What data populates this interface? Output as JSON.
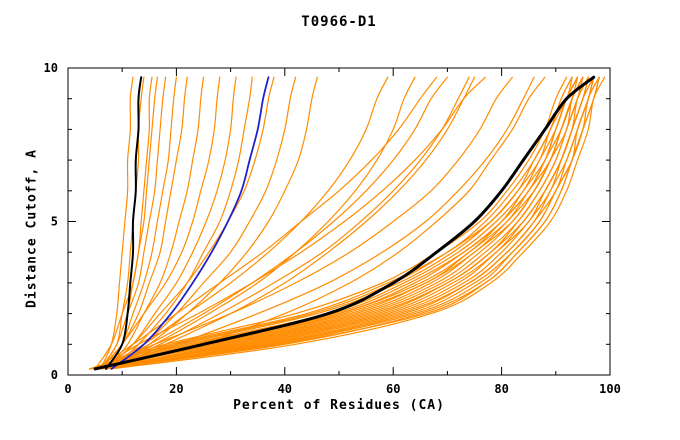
{
  "chart_data": {
    "type": "line",
    "title": "T0966-D1",
    "xlabel": "Percent of Residues (CA)",
    "ylabel": "Distance Cutoff, A",
    "xlim": [
      0,
      100
    ],
    "ylim": [
      0,
      10
    ],
    "x_ticks": [
      0,
      20,
      40,
      60,
      80,
      100
    ],
    "x_minor_step": 10,
    "y_ticks": [
      0,
      5,
      10
    ],
    "y_minor_step": 1,
    "grid": false,
    "legend": "none",
    "series_format": "each series lists percent-of-residues (x) at each distance-cutoff level in y_levels",
    "y_levels": [
      0.2,
      1,
      2,
      3,
      4,
      5,
      6,
      7,
      8,
      9,
      9.7
    ],
    "colors": {
      "ensemble": "#ff8c00",
      "highlight": "#000000",
      "reference": "#2121c8"
    },
    "ensemble_series": [
      [
        6,
        8,
        9,
        9.5,
        10,
        10.5,
        11,
        11,
        11.5,
        11.5,
        12
      ],
      [
        6,
        9,
        10,
        11,
        11.5,
        12,
        12.5,
        13,
        13,
        13.5,
        14
      ],
      [
        7,
        10,
        11,
        12,
        13,
        13.5,
        14,
        14.5,
        15,
        15,
        15.5
      ],
      [
        6,
        9,
        11,
        13,
        14,
        15,
        16,
        16.5,
        17,
        17.5,
        18
      ],
      [
        7,
        10,
        12,
        14,
        15.5,
        16.5,
        17.5,
        18.5,
        19,
        19.5,
        20
      ],
      [
        6,
        10,
        13,
        15,
        17,
        18,
        19,
        20,
        21,
        21.5,
        22
      ],
      [
        7,
        11,
        14,
        17,
        19,
        20.5,
        22,
        23,
        24,
        24.5,
        25
      ],
      [
        6,
        10,
        14,
        18,
        21,
        23,
        24.5,
        26,
        27,
        27.5,
        28
      ],
      [
        7,
        12,
        16,
        20,
        23,
        25.5,
        27.5,
        29,
        30,
        30.5,
        31
      ],
      [
        8,
        13,
        18,
        22,
        25,
        28,
        30,
        31.5,
        32.5,
        33.5,
        34
      ],
      [
        7,
        12,
        17,
        22,
        26,
        29.5,
        32.5,
        34.5,
        36,
        37,
        38
      ],
      [
        8,
        14,
        20,
        25,
        30,
        33.5,
        36.5,
        38.5,
        40,
        41,
        42
      ],
      [
        8,
        15,
        22,
        28,
        33,
        37,
        40,
        42.5,
        44,
        45,
        46
      ],
      [
        5,
        8,
        10,
        12,
        13,
        14,
        14.5,
        15,
        15.5,
        16,
        16.5
      ],
      [
        6,
        14,
        22,
        30,
        37,
        43,
        48,
        52,
        55,
        57,
        59
      ],
      [
        7,
        16,
        26,
        35,
        42,
        48,
        53,
        57,
        60,
        62,
        64
      ],
      [
        6,
        15,
        25,
        34,
        42,
        49,
        55,
        60,
        64,
        67,
        70
      ],
      [
        8,
        18,
        30,
        40,
        48,
        55,
        61,
        66,
        70,
        73,
        75
      ],
      [
        5,
        12,
        20,
        28,
        36,
        43,
        50,
        56,
        61,
        65,
        68
      ],
      [
        7,
        17,
        28,
        38,
        47,
        54,
        60,
        65,
        69,
        72,
        74
      ],
      [
        6,
        20,
        35,
        48,
        58,
        66,
        72,
        77,
        81,
        84,
        86
      ],
      [
        5,
        16,
        30,
        42,
        52,
        60,
        67,
        72,
        76,
        79,
        82
      ],
      [
        7,
        24,
        40,
        52,
        61,
        68,
        74,
        78,
        82,
        85,
        88
      ],
      [
        6,
        13,
        24,
        34,
        43,
        51,
        58,
        64,
        69,
        73,
        77
      ],
      [
        4,
        20,
        45,
        60,
        70,
        78,
        83,
        86,
        89,
        91,
        93
      ],
      [
        5,
        24,
        50,
        64,
        73,
        80,
        85,
        88,
        90,
        92,
        94
      ],
      [
        4,
        28,
        54,
        68,
        76,
        82,
        86,
        89,
        91,
        93,
        95
      ],
      [
        6,
        32,
        58,
        71,
        79,
        84,
        88,
        91,
        93,
        95,
        96
      ],
      [
        5,
        36,
        62,
        74,
        81,
        86,
        89,
        92,
        94,
        96,
        97
      ],
      [
        6,
        40,
        65,
        77,
        83,
        88,
        91,
        93,
        95,
        97,
        98
      ],
      [
        4,
        22,
        48,
        62,
        72,
        79,
        84,
        87,
        90,
        92,
        94
      ],
      [
        5,
        26,
        52,
        66,
        75,
        81,
        86,
        89,
        91,
        93,
        95
      ],
      [
        7,
        34,
        60,
        73,
        80,
        85,
        89,
        91,
        93,
        95,
        97
      ],
      [
        5,
        30,
        56,
        70,
        78,
        83,
        87,
        90,
        92,
        94,
        96
      ],
      [
        4,
        18,
        42,
        58,
        68,
        76,
        81,
        85,
        88,
        90,
        92
      ],
      [
        6,
        38,
        64,
        76,
        82,
        87,
        90,
        93,
        95,
        96,
        98
      ],
      [
        5,
        33,
        59,
        72,
        79,
        85,
        88,
        91,
        93,
        95,
        96
      ],
      [
        4,
        25,
        50,
        65,
        74,
        80,
        85,
        88,
        91,
        93,
        94
      ],
      [
        6,
        29,
        55,
        69,
        77,
        83,
        87,
        90,
        92,
        94,
        95
      ],
      [
        5,
        21,
        46,
        61,
        71,
        78,
        83,
        87,
        89,
        92,
        93
      ],
      [
        7,
        35,
        61,
        74,
        81,
        86,
        90,
        92,
        94,
        96,
        97
      ],
      [
        4,
        27,
        53,
        67,
        75,
        82,
        86,
        89,
        92,
        93,
        95
      ],
      [
        6,
        31,
        57,
        70,
        78,
        84,
        88,
        91,
        93,
        94,
        96
      ],
      [
        5,
        23,
        49,
        63,
        73,
        80,
        84,
        88,
        90,
        92,
        94
      ],
      [
        8,
        42,
        67,
        78,
        84,
        89,
        92,
        94,
        96,
        97,
        99
      ],
      [
        6,
        37,
        63,
        75,
        82,
        87,
        90,
        93,
        94,
        96,
        97
      ],
      [
        5,
        19,
        44,
        59,
        70,
        77,
        82,
        86,
        89,
        91,
        93
      ],
      [
        7,
        39,
        66,
        77,
        83,
        88,
        91,
        93,
        95,
        97,
        98
      ],
      [
        4,
        26,
        51,
        66,
        74,
        81,
        85,
        89,
        91,
        93,
        95
      ]
    ],
    "highlight_series": [
      {
        "name": "black-left",
        "width": 2,
        "x": [
          7,
          10,
          11,
          11.5,
          12,
          12,
          12.5,
          12.5,
          13,
          13,
          13.5
        ]
      },
      {
        "name": "black-right",
        "width": 3,
        "x": [
          5,
          25,
          48,
          60,
          68,
          75,
          80,
          84,
          88,
          92,
          97
        ]
      }
    ],
    "reference_series": {
      "name": "blue",
      "width": 1.8,
      "x": [
        8,
        14,
        19,
        23,
        26.5,
        29.5,
        32,
        33.5,
        35,
        36,
        37
      ]
    }
  }
}
